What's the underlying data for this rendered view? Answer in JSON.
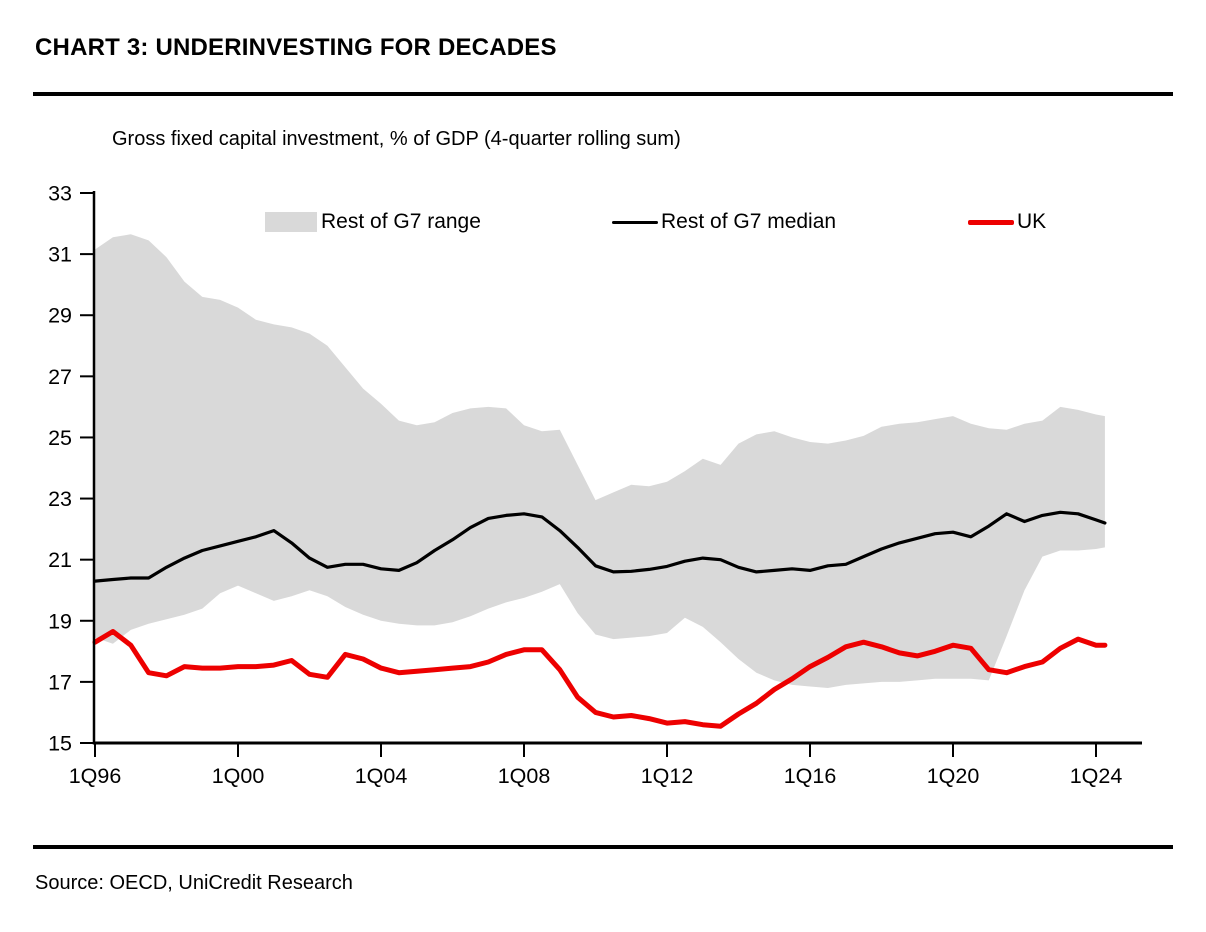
{
  "header": {
    "title": "CHART 3: UNDERINVESTING FOR DECADES"
  },
  "footer": {
    "source": "Source: OECD, UniCredit Research"
  },
  "chart_data": {
    "type": "line",
    "title": "Gross fixed capital investment, % of GDP (4-quarter rolling sum)",
    "grid": false,
    "legend_position": "top",
    "ylim": [
      15,
      33
    ],
    "yticks": [
      33,
      31,
      29,
      27,
      25,
      23,
      21,
      19,
      17,
      15
    ],
    "xticks": [
      {
        "value": 1996,
        "label": "1Q96"
      },
      {
        "value": 2000,
        "label": "1Q00"
      },
      {
        "value": 2004,
        "label": "1Q04"
      },
      {
        "value": 2008,
        "label": "1Q08"
      },
      {
        "value": 2012,
        "label": "1Q12"
      },
      {
        "value": 2016,
        "label": "1Q16"
      },
      {
        "value": 2020,
        "label": "1Q20"
      },
      {
        "value": 2024,
        "label": "1Q24"
      }
    ],
    "x": [
      1996.0,
      1996.5,
      1997.0,
      1997.5,
      1998.0,
      1998.5,
      1999.0,
      1999.5,
      2000.0,
      2000.5,
      2001.0,
      2001.5,
      2002.0,
      2002.5,
      2003.0,
      2003.5,
      2004.0,
      2004.5,
      2005.0,
      2005.5,
      2006.0,
      2006.5,
      2007.0,
      2007.5,
      2008.0,
      2008.5,
      2009.0,
      2009.5,
      2010.0,
      2010.5,
      2011.0,
      2011.5,
      2012.0,
      2012.5,
      2013.0,
      2013.5,
      2014.0,
      2014.5,
      2015.0,
      2015.5,
      2016.0,
      2016.5,
      2017.0,
      2017.5,
      2018.0,
      2018.5,
      2019.0,
      2019.5,
      2020.0,
      2020.5,
      2021.0,
      2021.5,
      2022.0,
      2022.5,
      2023.0,
      2023.5,
      2024.0,
      2024.25
    ],
    "series": [
      {
        "name": "Rest of G7 range",
        "type": "band",
        "color": "#d9d9d9",
        "upper": [
          31.15,
          31.55,
          31.65,
          31.45,
          30.9,
          30.1,
          29.6,
          29.5,
          29.25,
          28.85,
          28.7,
          28.6,
          28.4,
          28.0,
          27.3,
          26.6,
          26.1,
          25.55,
          25.4,
          25.5,
          25.8,
          25.95,
          26.0,
          25.95,
          25.4,
          25.2,
          25.25,
          24.1,
          22.95,
          23.2,
          23.45,
          23.4,
          23.55,
          23.9,
          24.3,
          24.1,
          24.8,
          25.1,
          25.2,
          25.0,
          24.85,
          24.8,
          24.9,
          25.05,
          25.35,
          25.45,
          25.5,
          25.6,
          25.7,
          25.45,
          25.3,
          25.25,
          25.45,
          25.55,
          26.0,
          25.9,
          25.75,
          25.7
        ],
        "lower": [
          18.45,
          18.25,
          18.7,
          18.9,
          19.05,
          19.2,
          19.4,
          19.9,
          20.15,
          19.9,
          19.65,
          19.8,
          20.0,
          19.8,
          19.45,
          19.2,
          19.0,
          18.9,
          18.85,
          18.85,
          18.95,
          19.15,
          19.4,
          19.6,
          19.75,
          19.95,
          20.2,
          19.25,
          18.55,
          18.4,
          18.45,
          18.5,
          18.6,
          19.1,
          18.8,
          18.3,
          17.75,
          17.3,
          17.05,
          16.9,
          16.85,
          16.8,
          16.9,
          16.95,
          17.0,
          17.0,
          17.05,
          17.1,
          17.1,
          17.1,
          17.05,
          18.5,
          20.0,
          21.1,
          21.3,
          21.3,
          21.35,
          21.4
        ]
      },
      {
        "name": "Rest of G7 median",
        "type": "line",
        "color": "#000000",
        "stroke_width": 3.2,
        "values": [
          20.3,
          20.35,
          20.4,
          20.4,
          20.75,
          21.05,
          21.3,
          21.45,
          21.6,
          21.75,
          21.95,
          21.55,
          21.05,
          20.75,
          20.85,
          20.85,
          20.7,
          20.65,
          20.9,
          21.3,
          21.65,
          22.05,
          22.35,
          22.45,
          22.5,
          22.4,
          21.95,
          21.4,
          20.8,
          20.6,
          20.62,
          20.68,
          20.78,
          20.95,
          21.05,
          21.0,
          20.75,
          20.6,
          20.65,
          20.7,
          20.65,
          20.8,
          20.85,
          21.1,
          21.35,
          21.55,
          21.7,
          21.85,
          21.9,
          21.75,
          22.1,
          22.5,
          22.25,
          22.45,
          22.55,
          22.5,
          22.3,
          22.2
        ]
      },
      {
        "name": "UK",
        "type": "line",
        "color": "#ed0000",
        "stroke_width": 5,
        "values": [
          18.3,
          18.65,
          18.2,
          17.3,
          17.2,
          17.5,
          17.45,
          17.45,
          17.5,
          17.5,
          17.55,
          17.7,
          17.25,
          17.15,
          17.9,
          17.75,
          17.45,
          17.3,
          17.35,
          17.4,
          17.45,
          17.5,
          17.65,
          17.9,
          18.05,
          18.05,
          17.4,
          16.5,
          16.0,
          15.85,
          15.9,
          15.8,
          15.65,
          15.7,
          15.6,
          15.55,
          15.95,
          16.3,
          16.75,
          17.1,
          17.5,
          17.8,
          18.15,
          18.3,
          18.15,
          17.95,
          17.85,
          18.0,
          18.2,
          18.1,
          17.4,
          17.3,
          17.5,
          17.65,
          18.1,
          18.4,
          18.2,
          18.2
        ]
      }
    ]
  }
}
